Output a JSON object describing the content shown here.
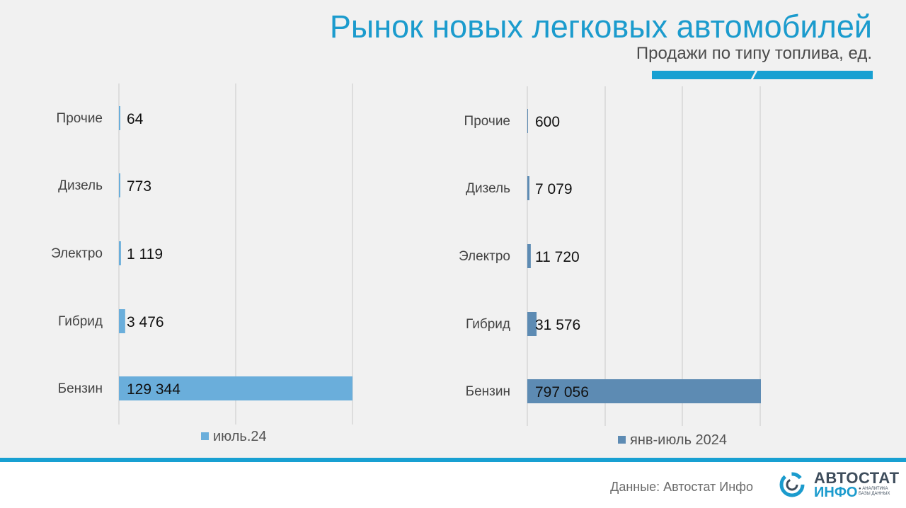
{
  "header": {
    "title": "Рынок новых легковых автомобилей",
    "subtitle": "Продажи по типу топлива, ед."
  },
  "colors": {
    "accent": "#18a0d2",
    "series_july": "#6aaedb",
    "series_ytd": "#5d8bb3"
  },
  "chart_data": [
    {
      "type": "bar",
      "orientation": "horizontal",
      "categories": [
        "Прочие",
        "Дизель",
        "Электро",
        "Гибрид",
        "Бензин"
      ],
      "series": [
        {
          "name": "июль.24",
          "values": [
            64,
            773,
            1119,
            3476,
            129344
          ]
        }
      ],
      "data_labels": [
        "64",
        "773",
        "1 119",
        "3 476",
        "129 344"
      ],
      "xlim": [
        0,
        129344
      ],
      "grid": true,
      "legend": "bottom"
    },
    {
      "type": "bar",
      "orientation": "horizontal",
      "categories": [
        "Прочие",
        "Дизель",
        "Электро",
        "Гибрид",
        "Бензин"
      ],
      "series": [
        {
          "name": "янв-июль 2024",
          "values": [
            600,
            7079,
            11720,
            31576,
            797056
          ]
        }
      ],
      "data_labels": [
        "600",
        "7 079",
        "11 720",
        "31 576",
        "797 056"
      ],
      "xlim": [
        0,
        797056
      ],
      "grid": true,
      "legend": "bottom"
    }
  ],
  "footer": {
    "source": "Данные: Автостат Инфо",
    "logo": {
      "line1_part1": "АВТО",
      "line1_part2": "СТАТ",
      "line2": "ИНФО",
      "tagline_1": "● АНАЛИТИКА",
      "tagline_2": "БАЗЫ ДАННЫХ"
    }
  }
}
